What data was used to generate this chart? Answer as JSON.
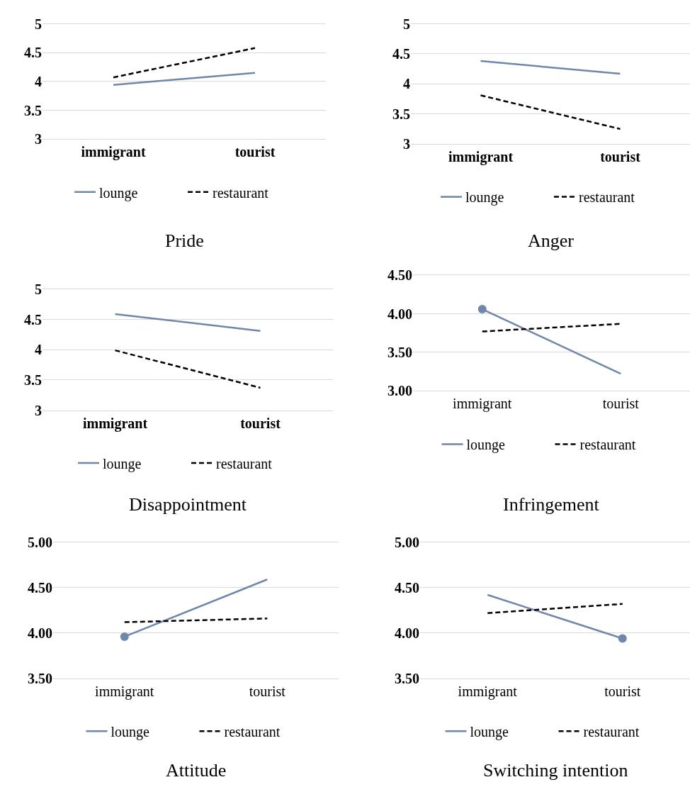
{
  "chart_data": [
    {
      "type": "line",
      "title": "Pride",
      "categories": [
        "immigrant",
        "tourist"
      ],
      "ylim": [
        3,
        5
      ],
      "yticks": [
        3,
        3.5,
        4,
        4.5,
        5
      ],
      "grid": "y",
      "legend": "bottom",
      "series": [
        {
          "name": "lounge",
          "color": "#7086aa",
          "line_style": "solid",
          "values": [
            3.94,
            4.15
          ]
        },
        {
          "name": "restaurant",
          "color": "#000000",
          "line_style": "dashed",
          "values": [
            4.07,
            4.58
          ]
        }
      ]
    },
    {
      "type": "line",
      "title": "Anger",
      "categories": [
        "immigrant",
        "tourist"
      ],
      "ylim": [
        3,
        5
      ],
      "yticks": [
        3,
        3.5,
        4,
        4.5,
        5
      ],
      "grid": "y",
      "legend": "bottom",
      "series": [
        {
          "name": "lounge",
          "color": "#7086aa",
          "line_style": "solid",
          "values": [
            4.38,
            4.17
          ]
        },
        {
          "name": "restaurant",
          "color": "#000000",
          "line_style": "dashed",
          "values": [
            3.81,
            3.25
          ]
        }
      ]
    },
    {
      "type": "line",
      "title": "Disappointment",
      "categories": [
        "immigrant",
        "tourist"
      ],
      "ylim": [
        3,
        5
      ],
      "yticks": [
        3,
        3.5,
        4,
        4.5,
        5
      ],
      "grid": "y",
      "legend": "bottom",
      "series": [
        {
          "name": "lounge",
          "color": "#7086aa",
          "line_style": "solid",
          "values": [
            4.59,
            4.31
          ]
        },
        {
          "name": "restaurant",
          "color": "#000000",
          "line_style": "dashed",
          "values": [
            3.99,
            3.37
          ]
        }
      ]
    },
    {
      "type": "line",
      "title": "Infringement",
      "categories": [
        "immigrant",
        "tourist"
      ],
      "ylim": [
        3,
        4.5
      ],
      "yticks": [
        {
          "value": 3,
          "label": "3.00"
        },
        {
          "value": 3.5,
          "label": "3.50"
        },
        {
          "value": 4,
          "label": "4.00"
        },
        {
          "value": 4.5,
          "label": "4.50"
        }
      ],
      "grid": "y",
      "legend": "bottom",
      "series": [
        {
          "name": "lounge",
          "color": "#7086aa",
          "line_style": "solid",
          "values": [
            4.06,
            3.22
          ]
        },
        {
          "name": "restaurant",
          "color": "#000000",
          "line_style": "dashed",
          "values": [
            3.77,
            3.87
          ]
        },
        {
          "type": "scatter",
          "marker": "circle",
          "color": "#7086aa",
          "x": [
            "immigrant"
          ],
          "values": [
            4.06
          ]
        }
      ]
    },
    {
      "type": "line",
      "title": "Attitude",
      "categories": [
        "immigrant",
        "tourist"
      ],
      "ylim": [
        3.5,
        5
      ],
      "yticks": [
        {
          "value": 3.5,
          "label": "3.50"
        },
        {
          "value": 4,
          "label": "4.00"
        },
        {
          "value": 4.5,
          "label": "4.50"
        },
        {
          "value": 5,
          "label": "5.00"
        }
      ],
      "grid": "y",
      "legend": "bottom",
      "series": [
        {
          "name": "lounge",
          "color": "#7086aa",
          "line_style": "solid",
          "values": [
            3.96,
            4.59
          ]
        },
        {
          "name": "restaurant",
          "color": "#000000",
          "line_style": "dashed",
          "values": [
            4.12,
            4.16
          ]
        },
        {
          "type": "scatter",
          "marker": "circle",
          "color": "#7086aa",
          "x": [
            "immigrant"
          ],
          "values": [
            3.96
          ]
        }
      ]
    },
    {
      "type": "line",
      "title": "Switching intention",
      "categories": [
        "immigrant",
        "tourist"
      ],
      "ylim": [
        3.5,
        5
      ],
      "yticks": [
        {
          "value": 3.5,
          "label": "3.50"
        },
        {
          "value": 4,
          "label": "4.00"
        },
        {
          "value": 4.5,
          "label": "4.50"
        },
        {
          "value": 5,
          "label": "5.00"
        }
      ],
      "grid": "y",
      "legend": "bottom",
      "series": [
        {
          "name": "lounge",
          "color": "#7086aa",
          "line_style": "solid",
          "values": [
            4.42,
            3.94
          ]
        },
        {
          "name": "restaurant",
          "color": "#000000",
          "line_style": "dashed",
          "values": [
            4.22,
            4.32
          ]
        },
        {
          "type": "scatter",
          "marker": "circle",
          "color": "#7086aa",
          "x": [
            "tourist"
          ],
          "values": [
            3.94
          ]
        }
      ]
    }
  ]
}
